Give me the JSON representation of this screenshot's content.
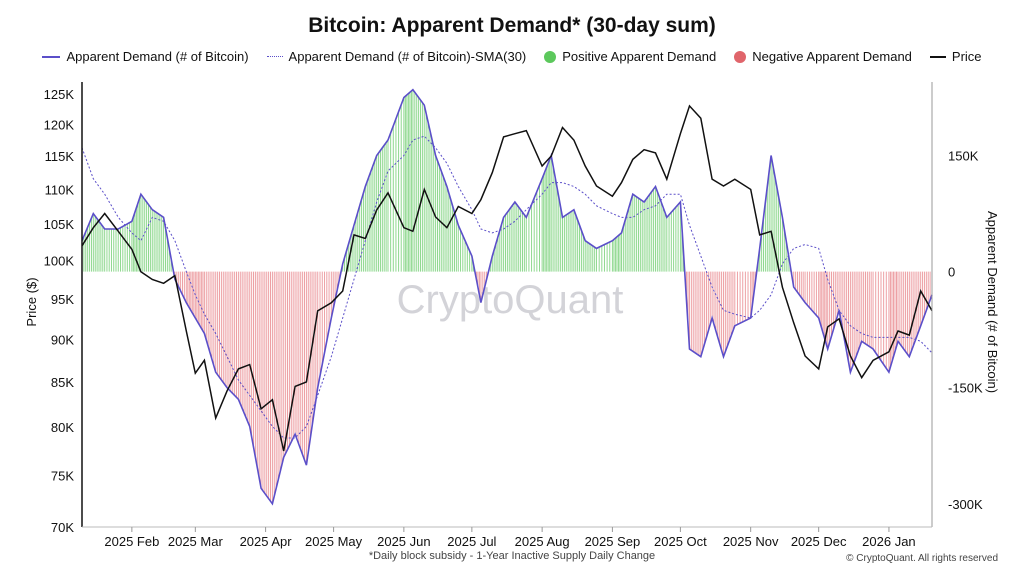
{
  "chart_data": {
    "type": "line",
    "title": "Bitcoin: Apparent Demand* (30-day sum)",
    "footnote": "*Daily block subsidy - 1-Year Inactive Supply Daily Change",
    "copyright": "© CryptoQuant. All rights reserved",
    "watermark": "CryptoQuant",
    "ylabel_left": "Price ($)",
    "ylabel_right": "Apparent Demand (# of Bitcoin)",
    "y_left_scale": "log",
    "ylim_left": [
      70000,
      127000
    ],
    "ylim_right": [
      -330000,
      245000
    ],
    "x_ticks": [
      "2025 Feb",
      "2025 Mar",
      "2025 Apr",
      "2025 May",
      "2025 Jun",
      "2025 Jul",
      "2025 Aug",
      "2025 Sep",
      "2025 Oct",
      "2025 Nov",
      "2025 Dec",
      "2026 Jan"
    ],
    "y_left_ticks": [
      "70K",
      "75K",
      "80K",
      "85K",
      "90K",
      "95K",
      "100K",
      "105K",
      "110K",
      "115K",
      "120K",
      "125K"
    ],
    "y_left_tick_values": [
      70000,
      75000,
      80000,
      85000,
      90000,
      95000,
      100000,
      105000,
      110000,
      115000,
      120000,
      125000
    ],
    "y_right_ticks": [
      "150K",
      "0",
      "-150K",
      "-300K"
    ],
    "y_right_tick_values": [
      150000,
      0,
      -150000,
      -300000
    ],
    "legend_position": "top",
    "legend": [
      {
        "label": "Apparent Demand (# of Bitcoin)",
        "kind": "line",
        "color": "#5b4fc9"
      },
      {
        "label": "Apparent Demand (# of Bitcoin)-SMA(30)",
        "kind": "dotted",
        "color": "#5b4fc9"
      },
      {
        "label": "Positive Apparent Demand",
        "kind": "circle",
        "color": "#5cc85c"
      },
      {
        "label": "Negative Apparent Demand",
        "kind": "circle",
        "color": "#e0656b"
      },
      {
        "label": "Price",
        "kind": "line",
        "color": "#111111"
      }
    ],
    "colors": {
      "demand": "#5b4fc9",
      "sma": "#5b4fc9",
      "positive": "#8fd88f",
      "negative": "#eda0a4",
      "price": "#111111"
    },
    "x": [
      "2025-01-10",
      "2025-01-15",
      "2025-01-20",
      "2025-01-26",
      "2025-02-01",
      "2025-02-05",
      "2025-02-10",
      "2025-02-15",
      "2025-02-20",
      "2025-02-25",
      "2025-03-01",
      "2025-03-05",
      "2025-03-10",
      "2025-03-15",
      "2025-03-20",
      "2025-03-25",
      "2025-03-30",
      "2025-04-04",
      "2025-04-09",
      "2025-04-14",
      "2025-04-19",
      "2025-04-24",
      "2025-04-30",
      "2025-05-05",
      "2025-05-10",
      "2025-05-15",
      "2025-05-20",
      "2025-05-25",
      "2025-06-01",
      "2025-06-05",
      "2025-06-10",
      "2025-06-15",
      "2025-06-20",
      "2025-06-25",
      "2025-07-01",
      "2025-07-05",
      "2025-07-10",
      "2025-07-15",
      "2025-07-20",
      "2025-07-25",
      "2025-08-01",
      "2025-08-05",
      "2025-08-10",
      "2025-08-15",
      "2025-08-20",
      "2025-08-25",
      "2025-09-01",
      "2025-09-05",
      "2025-09-10",
      "2025-09-15",
      "2025-09-20",
      "2025-09-25",
      "2025-10-01",
      "2025-10-05",
      "2025-10-10",
      "2025-10-15",
      "2025-10-20",
      "2025-10-25",
      "2025-11-01",
      "2025-11-05",
      "2025-11-10",
      "2025-11-15",
      "2025-11-20",
      "2025-11-25",
      "2025-12-01",
      "2025-12-05",
      "2025-12-10",
      "2025-12-15",
      "2025-12-20",
      "2025-12-25",
      "2026-01-01",
      "2026-01-05",
      "2026-01-10",
      "2026-01-15",
      "2026-01-20"
    ],
    "series": [
      {
        "name": "Apparent Demand (# of Bitcoin)",
        "axis": "right",
        "values": [
          40000,
          75000,
          55000,
          55000,
          65000,
          100000,
          80000,
          70000,
          -10000,
          -40000,
          -60000,
          -80000,
          -130000,
          -150000,
          -165000,
          -200000,
          -280000,
          -300000,
          -240000,
          -210000,
          -250000,
          -150000,
          -60000,
          10000,
          60000,
          110000,
          150000,
          170000,
          225000,
          235000,
          215000,
          150000,
          110000,
          60000,
          20000,
          -40000,
          20000,
          70000,
          90000,
          70000,
          120000,
          150000,
          70000,
          80000,
          40000,
          30000,
          40000,
          50000,
          100000,
          90000,
          110000,
          70000,
          90000,
          -100000,
          -110000,
          -60000,
          -110000,
          -70000,
          -60000,
          30000,
          150000,
          70000,
          -20000,
          -40000,
          -60000,
          -100000,
          -50000,
          -130000,
          -90000,
          -100000,
          -130000,
          -90000,
          -110000,
          -70000,
          -30000
        ]
      },
      {
        "name": "Apparent Demand (# of Bitcoin)-SMA(30)",
        "axis": "right",
        "values": [
          160000,
          120000,
          100000,
          70000,
          50000,
          40000,
          70000,
          65000,
          40000,
          0,
          -30000,
          -55000,
          -80000,
          -110000,
          -140000,
          -160000,
          -180000,
          -200000,
          -215000,
          -215000,
          -200000,
          -160000,
          -110000,
          -60000,
          -10000,
          40000,
          90000,
          130000,
          150000,
          170000,
          175000,
          160000,
          140000,
          110000,
          80000,
          55000,
          50000,
          55000,
          65000,
          80000,
          100000,
          115000,
          115000,
          110000,
          100000,
          85000,
          75000,
          70000,
          70000,
          80000,
          85000,
          100000,
          100000,
          60000,
          20000,
          -20000,
          -50000,
          -55000,
          -60000,
          -50000,
          -30000,
          10000,
          30000,
          35000,
          30000,
          -10000,
          -50000,
          -70000,
          -80000,
          -85000,
          -85000,
          -85000,
          -85000,
          -90000,
          -105000
        ]
      },
      {
        "name": "Price",
        "axis": "left",
        "values": [
          102000,
          104500,
          106500,
          104000,
          101500,
          98500,
          97500,
          97000,
          98000,
          91000,
          86000,
          87500,
          81000,
          84000,
          86500,
          87000,
          82000,
          83000,
          77500,
          84500,
          85000,
          93500,
          94500,
          96000,
          103500,
          103000,
          107000,
          109500,
          104500,
          104000,
          110000,
          106000,
          104500,
          107500,
          106500,
          108500,
          112500,
          118000,
          118500,
          119000,
          113500,
          115000,
          119500,
          117500,
          113500,
          110500,
          109000,
          111000,
          114500,
          116000,
          115500,
          111500,
          118500,
          123000,
          121000,
          111500,
          110500,
          111500,
          110000,
          103500,
          104000,
          96500,
          92000,
          88000,
          86500,
          91500,
          92500,
          88000,
          85500,
          87500,
          88500,
          91000,
          90500,
          96000,
          93500
        ]
      }
    ]
  }
}
